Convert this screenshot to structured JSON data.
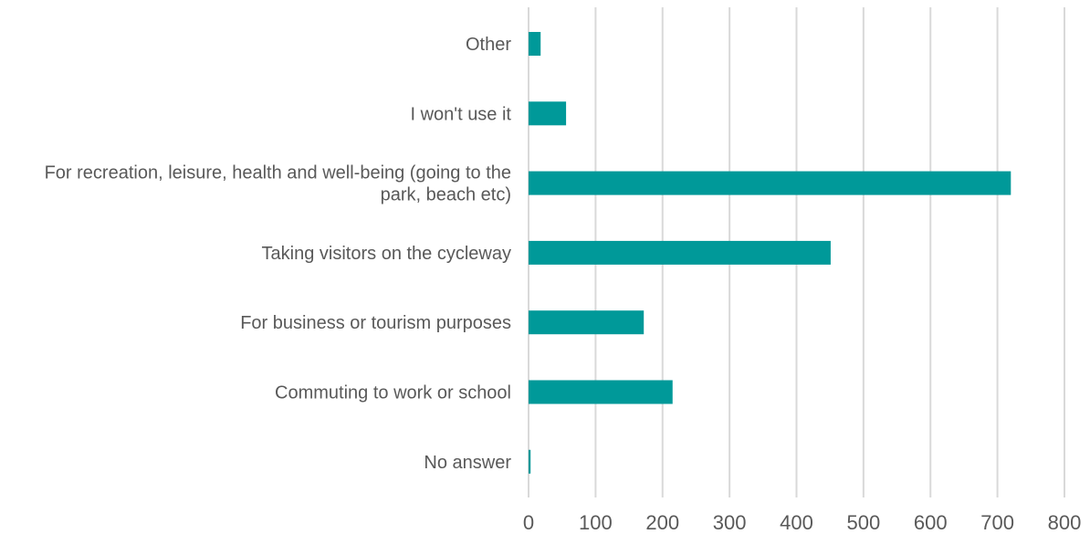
{
  "chart_data": {
    "type": "bar",
    "orientation": "horizontal",
    "categories": [
      "Other",
      "I won't use it",
      "For recreation, leisure, health and well-being (going to the park, beach etc)",
      "Taking visitors on the cycleway",
      "For business or tourism purposes",
      "Commuting to work or school",
      "No answer"
    ],
    "category_label_lines": [
      [
        "Other"
      ],
      [
        "I won't use it"
      ],
      [
        "For recreation, leisure, health and well-being (going to the",
        "park, beach etc)"
      ],
      [
        "Taking visitors on the cycleway"
      ],
      [
        "For business or tourism purposes"
      ],
      [
        "Commuting to work or school"
      ],
      [
        "No answer"
      ]
    ],
    "values": [
      18,
      56,
      720,
      451,
      172,
      215,
      3
    ],
    "xlim": [
      0,
      800
    ],
    "xticks": [
      0,
      100,
      200,
      300,
      400,
      500,
      600,
      700,
      800
    ],
    "title": "",
    "xlabel": "",
    "ylabel": "",
    "grid": "vertical",
    "legend": "none",
    "colors": {
      "bar": "#009999",
      "grid": "#d9d9d9",
      "text": "#595959"
    }
  }
}
